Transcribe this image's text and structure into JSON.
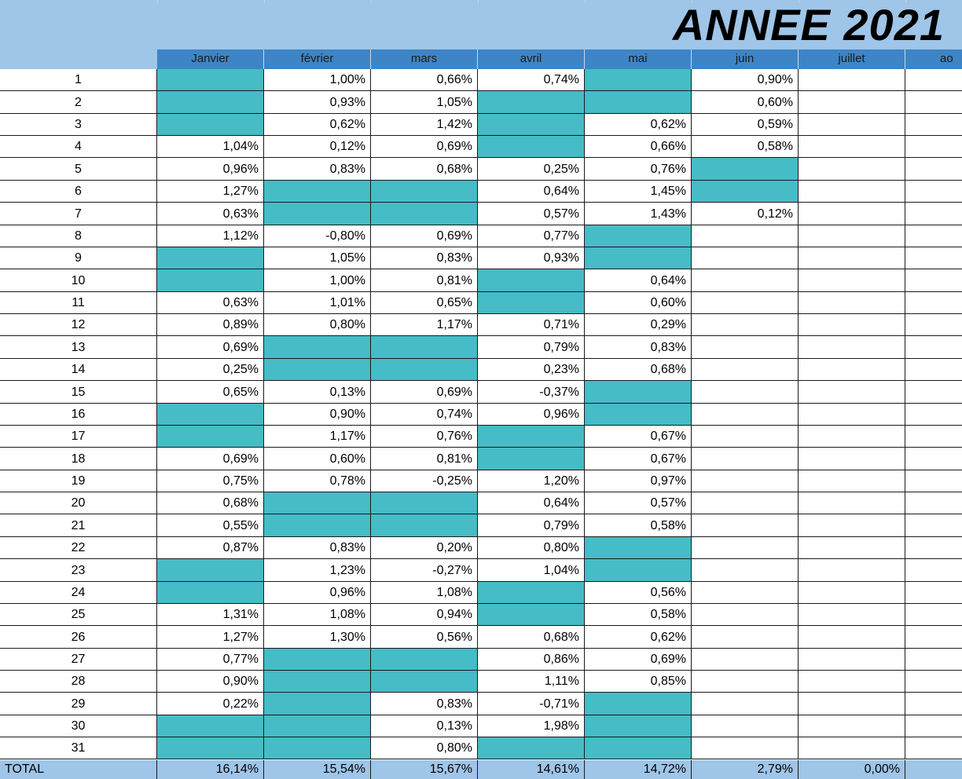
{
  "title": "ANNEE 2021",
  "colors": {
    "band": "#9fc5e8",
    "header": "#3d85c6",
    "holiday": "#45bcc6",
    "cell": "#ffffff"
  },
  "months": [
    "Janvier",
    "février",
    "mars",
    "avril",
    "mai",
    "juin",
    "juillet",
    "ao"
  ],
  "days": [
    {
      "day": "1",
      "values": [
        "",
        "1,00%",
        "0,66%",
        "0,74%",
        "",
        "0,90%",
        "",
        ""
      ],
      "fill": [
        1,
        0,
        0,
        0,
        1,
        0,
        0,
        0
      ]
    },
    {
      "day": "2",
      "values": [
        "",
        "0,93%",
        "1,05%",
        "",
        "",
        "0,60%",
        "",
        ""
      ],
      "fill": [
        1,
        0,
        0,
        1,
        1,
        0,
        0,
        0
      ]
    },
    {
      "day": "3",
      "values": [
        "",
        "0,62%",
        "1,42%",
        "",
        "0,62%",
        "0,59%",
        "",
        ""
      ],
      "fill": [
        1,
        0,
        0,
        1,
        0,
        0,
        0,
        0
      ]
    },
    {
      "day": "4",
      "values": [
        "1,04%",
        "0,12%",
        "0,69%",
        "",
        "0,66%",
        "0,58%",
        "",
        ""
      ],
      "fill": [
        0,
        0,
        0,
        1,
        0,
        0,
        0,
        0
      ]
    },
    {
      "day": "5",
      "values": [
        "0,96%",
        "0,83%",
        "0,68%",
        "0,25%",
        "0,76%",
        "",
        "",
        ""
      ],
      "fill": [
        0,
        0,
        0,
        0,
        0,
        1,
        0,
        0
      ]
    },
    {
      "day": "6",
      "values": [
        "1,27%",
        "",
        "",
        "0,64%",
        "1,45%",
        "",
        "",
        ""
      ],
      "fill": [
        0,
        1,
        1,
        0,
        0,
        1,
        0,
        0
      ]
    },
    {
      "day": "7",
      "values": [
        "0,63%",
        "",
        "",
        "0,57%",
        "1,43%",
        "0,12%",
        "",
        ""
      ],
      "fill": [
        0,
        1,
        1,
        0,
        0,
        0,
        0,
        0
      ]
    },
    {
      "day": "8",
      "values": [
        "1,12%",
        "-0,80%",
        "0,69%",
        "0,77%",
        "",
        "",
        "",
        ""
      ],
      "fill": [
        0,
        0,
        0,
        0,
        1,
        0,
        0,
        0
      ]
    },
    {
      "day": "9",
      "values": [
        "",
        "1,05%",
        "0,83%",
        "0,93%",
        "",
        "",
        "",
        ""
      ],
      "fill": [
        1,
        0,
        0,
        0,
        1,
        0,
        0,
        0
      ]
    },
    {
      "day": "10",
      "values": [
        "",
        "1,00%",
        "0,81%",
        "",
        "0,64%",
        "",
        "",
        ""
      ],
      "fill": [
        1,
        0,
        0,
        1,
        0,
        0,
        0,
        0
      ]
    },
    {
      "day": "11",
      "values": [
        "0,63%",
        "1,01%",
        "0,65%",
        "",
        "0,60%",
        "",
        "",
        ""
      ],
      "fill": [
        0,
        0,
        0,
        1,
        0,
        0,
        0,
        0
      ]
    },
    {
      "day": "12",
      "values": [
        "0,89%",
        "0,80%",
        "1,17%",
        "0,71%",
        "0,29%",
        "",
        "",
        ""
      ],
      "fill": [
        0,
        0,
        0,
        0,
        0,
        0,
        0,
        0
      ]
    },
    {
      "day": "13",
      "values": [
        "0,69%",
        "",
        "",
        "0,79%",
        "0,83%",
        "",
        "",
        ""
      ],
      "fill": [
        0,
        1,
        1,
        0,
        0,
        0,
        0,
        0
      ]
    },
    {
      "day": "14",
      "values": [
        "0,25%",
        "",
        "",
        "0,23%",
        "0,68%",
        "",
        "",
        ""
      ],
      "fill": [
        0,
        1,
        1,
        0,
        0,
        0,
        0,
        0
      ]
    },
    {
      "day": "15",
      "values": [
        "0,65%",
        "0,13%",
        "0,69%",
        "-0,37%",
        "",
        "",
        "",
        ""
      ],
      "fill": [
        0,
        0,
        0,
        0,
        1,
        0,
        0,
        0
      ]
    },
    {
      "day": "16",
      "values": [
        "",
        "0,90%",
        "0,74%",
        "0,96%",
        "",
        "",
        "",
        ""
      ],
      "fill": [
        1,
        0,
        0,
        0,
        1,
        0,
        0,
        0
      ]
    },
    {
      "day": "17",
      "values": [
        "",
        "1,17%",
        "0,76%",
        "",
        "0,67%",
        "",
        "",
        ""
      ],
      "fill": [
        1,
        0,
        0,
        1,
        0,
        0,
        0,
        0
      ]
    },
    {
      "day": "18",
      "values": [
        "0,69%",
        "0,60%",
        "0,81%",
        "",
        "0,67%",
        "",
        "",
        ""
      ],
      "fill": [
        0,
        0,
        0,
        1,
        0,
        0,
        0,
        0
      ]
    },
    {
      "day": "19",
      "values": [
        "0,75%",
        "0,78%",
        "-0,25%",
        "1,20%",
        "0,97%",
        "",
        "",
        ""
      ],
      "fill": [
        0,
        0,
        0,
        0,
        0,
        0,
        0,
        0
      ]
    },
    {
      "day": "20",
      "values": [
        "0,68%",
        "",
        "",
        "0,64%",
        "0,57%",
        "",
        "",
        ""
      ],
      "fill": [
        0,
        1,
        1,
        0,
        0,
        0,
        0,
        0
      ]
    },
    {
      "day": "21",
      "values": [
        "0,55%",
        "",
        "",
        "0,79%",
        "0,58%",
        "",
        "",
        ""
      ],
      "fill": [
        0,
        1,
        1,
        0,
        0,
        0,
        0,
        0
      ]
    },
    {
      "day": "22",
      "values": [
        "0,87%",
        "0,83%",
        "0,20%",
        "0,80%",
        "",
        "",
        "",
        ""
      ],
      "fill": [
        0,
        0,
        0,
        0,
        1,
        0,
        0,
        0
      ]
    },
    {
      "day": "23",
      "values": [
        "",
        "1,23%",
        "-0,27%",
        "1,04%",
        "",
        "",
        "",
        ""
      ],
      "fill": [
        1,
        0,
        0,
        0,
        1,
        0,
        0,
        0
      ]
    },
    {
      "day": "24",
      "values": [
        "",
        "0,96%",
        "1,08%",
        "",
        "0,56%",
        "",
        "",
        ""
      ],
      "fill": [
        1,
        0,
        0,
        1,
        0,
        0,
        0,
        0
      ]
    },
    {
      "day": "25",
      "values": [
        "1,31%",
        "1,08%",
        "0,94%",
        "",
        "0,58%",
        "",
        "",
        ""
      ],
      "fill": [
        0,
        0,
        0,
        1,
        0,
        0,
        0,
        0
      ]
    },
    {
      "day": "26",
      "values": [
        "1,27%",
        "1,30%",
        "0,56%",
        "0,68%",
        "0,62%",
        "",
        "",
        ""
      ],
      "fill": [
        0,
        0,
        0,
        0,
        0,
        0,
        0,
        0
      ]
    },
    {
      "day": "27",
      "values": [
        "0,77%",
        "",
        "",
        "0,86%",
        "0,69%",
        "",
        "",
        ""
      ],
      "fill": [
        0,
        1,
        1,
        0,
        0,
        0,
        0,
        0
      ]
    },
    {
      "day": "28",
      "values": [
        "0,90%",
        "",
        "",
        "1,11%",
        "0,85%",
        "",
        "",
        ""
      ],
      "fill": [
        0,
        1,
        1,
        0,
        0,
        0,
        0,
        0
      ]
    },
    {
      "day": "29",
      "values": [
        "0,22%",
        "",
        "0,83%",
        "-0,71%",
        "",
        "",
        "",
        ""
      ],
      "fill": [
        0,
        1,
        0,
        0,
        1,
        0,
        0,
        0
      ]
    },
    {
      "day": "30",
      "values": [
        "",
        "",
        "0,13%",
        "1,98%",
        "",
        "",
        "",
        ""
      ],
      "fill": [
        1,
        1,
        0,
        0,
        1,
        0,
        0,
        0
      ]
    },
    {
      "day": "31",
      "values": [
        "",
        "",
        "0,80%",
        "",
        "",
        "",
        "",
        ""
      ],
      "fill": [
        1,
        1,
        0,
        1,
        1,
        0,
        0,
        0
      ]
    }
  ],
  "total": {
    "label": "TOTAL",
    "values": [
      "16,14%",
      "15,54%",
      "15,67%",
      "14,61%",
      "14,72%",
      "2,79%",
      "0,00%",
      ""
    ]
  }
}
